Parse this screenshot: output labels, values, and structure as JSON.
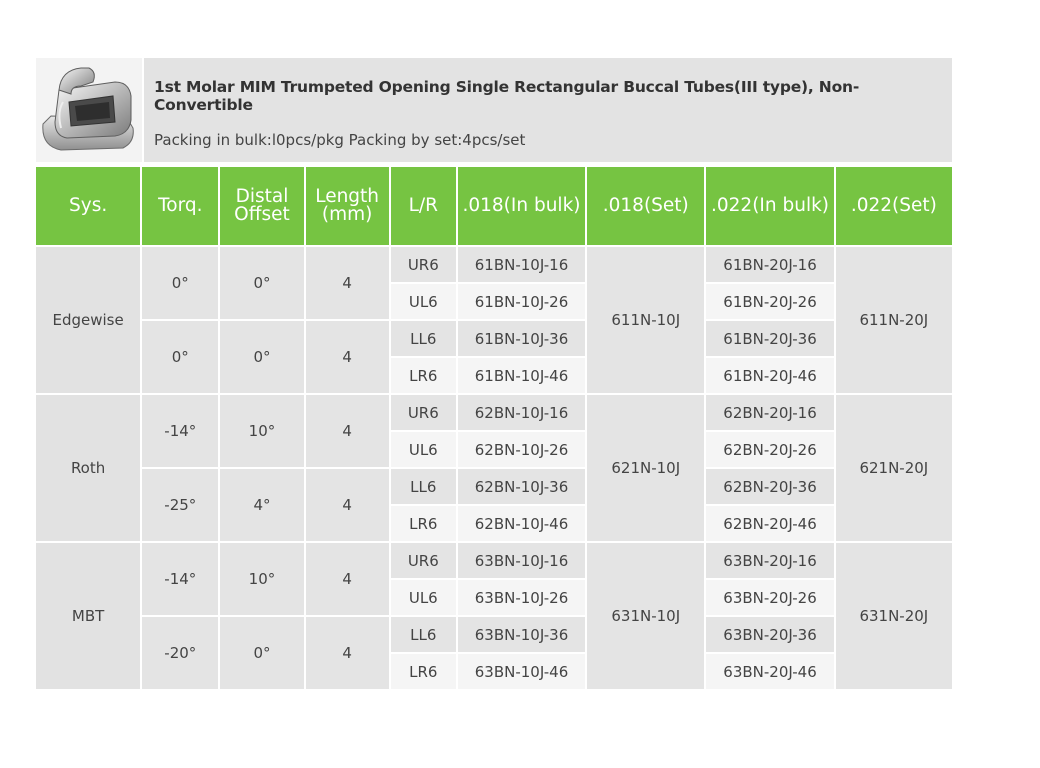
{
  "product": {
    "title": "1st Molar MIM Trumpeted Opening Single Rectangular Buccal Tubes(III type), Non-Convertible",
    "packing": "Packing in bulk:l0pcs/pkg Packing by set:4pcs/set",
    "image_icon": "buccal-tube-image"
  },
  "table": {
    "headers": [
      "Sys.",
      "Torq.",
      "Distal Offset",
      "Length (mm)",
      "L/R",
      ".018(In bulk)",
      ".018(Set)",
      ".022(In bulk)",
      ".022(Set)"
    ],
    "groups": [
      {
        "sys": "Edgewise",
        "set018": "611N-10J",
        "set022": "611N-20J",
        "subs": [
          {
            "torq": "0°",
            "offset": "0°",
            "length": "4",
            "rows": [
              {
                "lr": "UR6",
                "b018": "61BN-10J-16",
                "b022": "61BN-20J-16"
              },
              {
                "lr": "UL6",
                "b018": "61BN-10J-26",
                "b022": "61BN-20J-26"
              }
            ]
          },
          {
            "torq": "0°",
            "offset": "0°",
            "length": "4",
            "rows": [
              {
                "lr": "LL6",
                "b018": "61BN-10J-36",
                "b022": "61BN-20J-36"
              },
              {
                "lr": "LR6",
                "b018": "61BN-10J-46",
                "b022": "61BN-20J-46"
              }
            ]
          }
        ]
      },
      {
        "sys": "Roth",
        "set018": "621N-10J",
        "set022": "621N-20J",
        "subs": [
          {
            "torq": "-14°",
            "offset": "10°",
            "length": "4",
            "rows": [
              {
                "lr": "UR6",
                "b018": "62BN-10J-16",
                "b022": "62BN-20J-16"
              },
              {
                "lr": "UL6",
                "b018": "62BN-10J-26",
                "b022": "62BN-20J-26"
              }
            ]
          },
          {
            "torq": "-25°",
            "offset": "4°",
            "length": "4",
            "rows": [
              {
                "lr": "LL6",
                "b018": "62BN-10J-36",
                "b022": "62BN-20J-36"
              },
              {
                "lr": "LR6",
                "b018": "62BN-10J-46",
                "b022": "62BN-20J-46"
              }
            ]
          }
        ]
      },
      {
        "sys": "MBT",
        "set018": "631N-10J",
        "set022": "631N-20J",
        "subs": [
          {
            "torq": "-14°",
            "offset": "10°",
            "length": "4",
            "rows": [
              {
                "lr": "UR6",
                "b018": "63BN-10J-16",
                "b022": "63BN-20J-16"
              },
              {
                "lr": "UL6",
                "b018": "63BN-10J-26",
                "b022": "63BN-20J-26"
              }
            ]
          },
          {
            "torq": "-20°",
            "offset": "0°",
            "length": "4",
            "rows": [
              {
                "lr": "LL6",
                "b018": "63BN-10J-36",
                "b022": "63BN-20J-36"
              },
              {
                "lr": "LR6",
                "b018": "63BN-10J-46",
                "b022": "63BN-20J-46"
              }
            ]
          }
        ]
      }
    ]
  },
  "colors": {
    "header_green": "#76c442",
    "cell_gray": "#e4e4e4",
    "cell_light": "#f5f5f5",
    "info_bg": "#e3e3e3"
  }
}
